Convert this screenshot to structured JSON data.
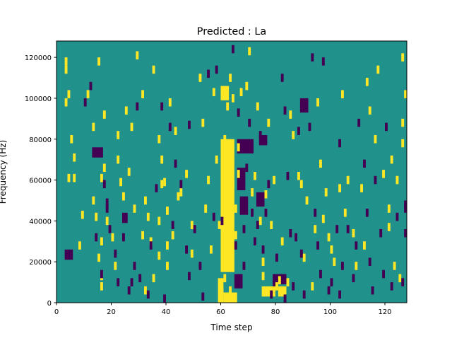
{
  "chart_data": {
    "type": "heatmap",
    "title": "Predicted : La",
    "xlabel": "Time step",
    "ylabel": "Frequency (Hz)",
    "xlim": [
      0,
      128
    ],
    "ylim": [
      0,
      128000
    ],
    "x_ticks": [
      0,
      20,
      40,
      60,
      80,
      100,
      120
    ],
    "x_tick_labels": [
      "0",
      "20",
      "40",
      "60",
      "80",
      "100",
      "120"
    ],
    "y_ticks": [
      0,
      20000,
      40000,
      60000,
      80000,
      100000,
      120000
    ],
    "y_tick_labels": [
      "0",
      "20000",
      "40000",
      "60000",
      "80000",
      "100000",
      "120000"
    ],
    "grid": false,
    "legend": "none",
    "colors": {
      "background": "#21918c",
      "low": "#440154",
      "high": "#fde725"
    },
    "grid_size": {
      "cols": 128,
      "rows": 128
    },
    "high_cells": [
      [
        3,
        120
      ],
      [
        3,
        116
      ],
      [
        3,
        100
      ],
      [
        4,
        104
      ],
      [
        5,
        82
      ],
      [
        6,
        73
      ],
      [
        6,
        63
      ],
      [
        4,
        63
      ],
      [
        8,
        30
      ],
      [
        9,
        45
      ],
      [
        11,
        104
      ],
      [
        13,
        88
      ],
      [
        13,
        52
      ],
      [
        14,
        44
      ],
      [
        15,
        120
      ],
      [
        17,
        94
      ],
      [
        17,
        68
      ],
      [
        16,
        63
      ],
      [
        18,
        42
      ],
      [
        16,
        32
      ],
      [
        15,
        24
      ],
      [
        16,
        15
      ],
      [
        16,
        10
      ],
      [
        20,
        34
      ],
      [
        21,
        20
      ],
      [
        22,
        84
      ],
      [
        22,
        72
      ],
      [
        23,
        61
      ],
      [
        24,
        54
      ],
      [
        25,
        96
      ],
      [
        26,
        66
      ],
      [
        27,
        88
      ],
      [
        28,
        48
      ],
      [
        29,
        123
      ],
      [
        31,
        35
      ],
      [
        31,
        104
      ],
      [
        32,
        8
      ],
      [
        32,
        52
      ],
      [
        33,
        44
      ],
      [
        34,
        32
      ],
      [
        35,
        14
      ],
      [
        35,
        116
      ],
      [
        37,
        82
      ],
      [
        37,
        42
      ],
      [
        37,
        25
      ],
      [
        38,
        72
      ],
      [
        38,
        60
      ],
      [
        39,
        61
      ],
      [
        40,
        47
      ],
      [
        40,
        30
      ],
      [
        40,
        20
      ],
      [
        41,
        100
      ],
      [
        42,
        35
      ],
      [
        43,
        86
      ],
      [
        44,
        54
      ],
      [
        45,
        56
      ],
      [
        47,
        65
      ],
      [
        49,
        40
      ],
      [
        49,
        26
      ],
      [
        52,
        112
      ],
      [
        53,
        90
      ],
      [
        54,
        48
      ],
      [
        55,
        62
      ],
      [
        56,
        28
      ],
      [
        57,
        105
      ],
      [
        58,
        72
      ],
      [
        59,
        40
      ],
      [
        60,
        24
      ],
      [
        61,
        82
      ],
      [
        62,
        75
      ],
      [
        62,
        62
      ],
      [
        63,
        55
      ],
      [
        61,
        45
      ],
      [
        62,
        38
      ],
      [
        61,
        30
      ],
      [
        62,
        22
      ],
      [
        61,
        14
      ],
      [
        60,
        8
      ],
      [
        63,
        8
      ],
      [
        62,
        98
      ],
      [
        63,
        112
      ],
      [
        64,
        102
      ],
      [
        63,
        70
      ],
      [
        64,
        60
      ],
      [
        65,
        48
      ],
      [
        65,
        35
      ],
      [
        66,
        78
      ],
      [
        66,
        65
      ],
      [
        67,
        105
      ],
      [
        69,
        108
      ],
      [
        70,
        125
      ],
      [
        71,
        56
      ],
      [
        72,
        64
      ],
      [
        73,
        98
      ],
      [
        74,
        42
      ],
      [
        75,
        22
      ],
      [
        75,
        15
      ],
      [
        76,
        55
      ],
      [
        77,
        90
      ],
      [
        78,
        40
      ],
      [
        79,
        62
      ],
      [
        80,
        10
      ],
      [
        81,
        13
      ],
      [
        82,
        32
      ],
      [
        84,
        12
      ],
      [
        85,
        94
      ],
      [
        86,
        84
      ],
      [
        88,
        64
      ],
      [
        89,
        60
      ],
      [
        90,
        24
      ],
      [
        91,
        52
      ],
      [
        93,
        10
      ],
      [
        94,
        38
      ],
      [
        95,
        100
      ],
      [
        96,
        70
      ],
      [
        97,
        43
      ],
      [
        98,
        56
      ],
      [
        99,
        34
      ],
      [
        100,
        28
      ],
      [
        101,
        22
      ],
      [
        103,
        58
      ],
      [
        104,
        104
      ],
      [
        105,
        46
      ],
      [
        106,
        62
      ],
      [
        108,
        36
      ],
      [
        109,
        20
      ],
      [
        111,
        58
      ],
      [
        112,
        30
      ],
      [
        113,
        110
      ],
      [
        114,
        96
      ],
      [
        116,
        82
      ],
      [
        117,
        116
      ],
      [
        119,
        65
      ],
      [
        121,
        48
      ],
      [
        121,
        39
      ],
      [
        122,
        72
      ],
      [
        123,
        20
      ],
      [
        124,
        62
      ],
      [
        125,
        14
      ],
      [
        126,
        90
      ],
      [
        126,
        122
      ],
      [
        126,
        80
      ],
      [
        127,
        104
      ]
    ],
    "high_spans": [
      [
        60,
        64,
        16,
        80
      ],
      [
        61,
        65,
        1,
        5
      ],
      [
        60,
        62,
        100,
        106
      ],
      [
        75,
        79,
        4,
        8
      ],
      [
        81,
        83,
        4,
        8
      ],
      [
        59,
        60,
        1,
        12
      ]
    ],
    "low_cells": [
      [
        10,
        100
      ],
      [
        12,
        108
      ],
      [
        14,
        34
      ],
      [
        16,
        16
      ],
      [
        17,
        60
      ],
      [
        18,
        51
      ],
      [
        18,
        48
      ],
      [
        19,
        38
      ],
      [
        21,
        26
      ],
      [
        22,
        12
      ],
      [
        24,
        34
      ],
      [
        26,
        8
      ],
      [
        27,
        12
      ],
      [
        28,
        20
      ],
      [
        29,
        98
      ],
      [
        30,
        14
      ],
      [
        33,
        6
      ],
      [
        34,
        30
      ],
      [
        36,
        58
      ],
      [
        38,
        98
      ],
      [
        39,
        4
      ],
      [
        41,
        88
      ],
      [
        42,
        40
      ],
      [
        43,
        70
      ],
      [
        45,
        60
      ],
      [
        47,
        28
      ],
      [
        48,
        15
      ],
      [
        48,
        89
      ],
      [
        50,
        38
      ],
      [
        52,
        20
      ],
      [
        53,
        5
      ],
      [
        55,
        114
      ],
      [
        57,
        44
      ],
      [
        58,
        116
      ],
      [
        60,
        42
      ],
      [
        64,
        126
      ],
      [
        65,
        30
      ],
      [
        66,
        95
      ],
      [
        67,
        14
      ],
      [
        68,
        20
      ],
      [
        68,
        38
      ],
      [
        69,
        68
      ],
      [
        70,
        90
      ],
      [
        71,
        46
      ],
      [
        72,
        32
      ],
      [
        73,
        40
      ],
      [
        74,
        84
      ],
      [
        75,
        28
      ],
      [
        76,
        46
      ],
      [
        77,
        60
      ],
      [
        78,
        6
      ],
      [
        79,
        12
      ],
      [
        80,
        24
      ],
      [
        82,
        112
      ],
      [
        83,
        4
      ],
      [
        83,
        96
      ],
      [
        84,
        64
      ],
      [
        85,
        36
      ],
      [
        86,
        10
      ],
      [
        87,
        34
      ],
      [
        88,
        86
      ],
      [
        89,
        26
      ],
      [
        90,
        6
      ],
      [
        92,
        88
      ],
      [
        93,
        122
      ],
      [
        94,
        46
      ],
      [
        95,
        30
      ],
      [
        96,
        16
      ],
      [
        97,
        120
      ],
      [
        99,
        8
      ],
      [
        100,
        12
      ],
      [
        102,
        38
      ],
      [
        103,
        6
      ],
      [
        103,
        80
      ],
      [
        104,
        20
      ],
      [
        106,
        38
      ],
      [
        108,
        14
      ],
      [
        109,
        30
      ],
      [
        110,
        90
      ],
      [
        112,
        70
      ],
      [
        113,
        46
      ],
      [
        114,
        22
      ],
      [
        115,
        8
      ],
      [
        116,
        62
      ],
      [
        118,
        36
      ],
      [
        119,
        16
      ],
      [
        120,
        88
      ],
      [
        122,
        10
      ],
      [
        124,
        44
      ],
      [
        126,
        12
      ],
      [
        127,
        50
      ],
      [
        127,
        36
      ],
      [
        128,
        48
      ]
    ],
    "low_spans": [
      [
        66,
        71,
        74,
        80
      ],
      [
        66,
        68,
        56,
        66
      ],
      [
        67,
        69,
        44,
        52
      ],
      [
        73,
        75,
        48,
        54
      ],
      [
        74,
        76,
        78,
        82
      ],
      [
        65,
        67,
        8,
        14
      ],
      [
        79,
        83,
        10,
        14
      ],
      [
        3,
        5,
        22,
        26
      ],
      [
        89,
        91,
        94,
        100
      ],
      [
        13,
        16,
        72,
        76
      ],
      [
        24,
        25,
        40,
        44
      ]
    ]
  }
}
